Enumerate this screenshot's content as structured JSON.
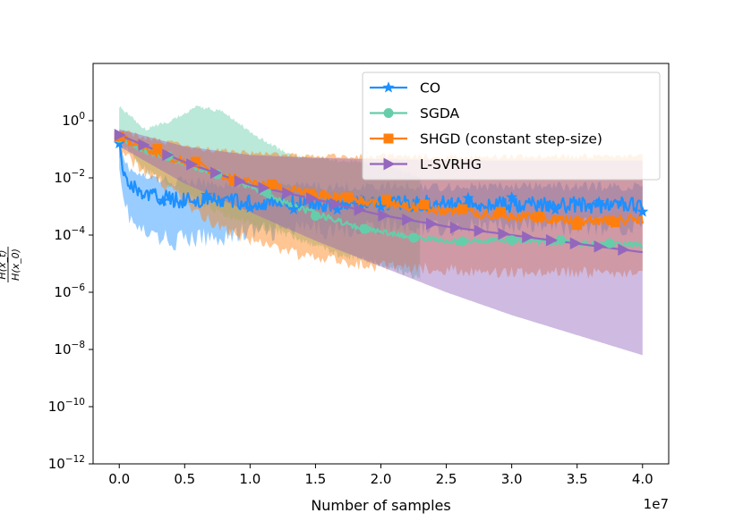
{
  "chart_data": {
    "type": "line",
    "title": "",
    "xlabel": "Number of samples",
    "ylabel_num": "H(x_t)",
    "ylabel_den": "H(x_0)",
    "x_scale_label": "1e7",
    "yscale": "log",
    "xlim": [
      -0.2,
      4.2
    ],
    "ylim_exp": [
      -12,
      2
    ],
    "x_ticks": [
      {
        "value": 0.0,
        "label": "0.0"
      },
      {
        "value": 0.5,
        "label": "0.5"
      },
      {
        "value": 1.0,
        "label": "1.0"
      },
      {
        "value": 1.5,
        "label": "1.5"
      },
      {
        "value": 2.0,
        "label": "2.0"
      },
      {
        "value": 2.5,
        "label": "2.5"
      },
      {
        "value": 3.0,
        "label": "3.0"
      },
      {
        "value": 3.5,
        "label": "3.5"
      },
      {
        "value": 4.0,
        "label": "4.0"
      }
    ],
    "y_ticks": [
      {
        "exp": 0,
        "base": "10",
        "power": "0"
      },
      {
        "exp": -2,
        "base": "10",
        "power": "−2"
      },
      {
        "exp": -4,
        "base": "10",
        "power": "−4"
      },
      {
        "exp": -6,
        "base": "10",
        "power": "−6"
      },
      {
        "exp": -8,
        "base": "10",
        "power": "−8"
      },
      {
        "exp": -10,
        "base": "10",
        "power": "−10"
      },
      {
        "exp": -12,
        "base": "10",
        "power": "−12"
      }
    ],
    "legend_position": "top-right",
    "series": [
      {
        "name": "CO",
        "color": "#1e90ff",
        "marker": "star",
        "noise": 0.28,
        "marker_every": 40,
        "x": [
          0.0,
          0.02,
          0.05,
          0.1,
          0.2,
          0.4,
          0.7,
          1.0,
          1.5,
          2.0,
          2.5,
          3.0,
          3.5,
          4.0
        ],
        "y_exp": [
          -0.8,
          -1.5,
          -2.0,
          -2.3,
          -2.6,
          -2.75,
          -2.8,
          -2.85,
          -2.9,
          -2.9,
          -2.9,
          -2.95,
          -2.95,
          -2.95
        ],
        "band_upper_exp": [
          -0.5,
          -1.0,
          -1.5,
          -1.8,
          -2.0,
          -2.1,
          -2.2,
          -2.25,
          -2.3,
          -2.3,
          -2.3,
          -2.3,
          -2.3,
          -2.3
        ],
        "band_lower_exp": [
          -1.3,
          -2.3,
          -3.0,
          -3.6,
          -4.0,
          -4.2,
          -4.1,
          -3.9,
          -3.8,
          -3.7,
          -3.7,
          -3.7,
          -3.7,
          -3.7
        ]
      },
      {
        "name": "SGDA",
        "color": "#66cdaa",
        "marker": "circle",
        "noise": 0.1,
        "marker_every": 45,
        "x": [
          0.0,
          0.2,
          0.4,
          0.6,
          0.8,
          1.0,
          1.2,
          1.5,
          1.8,
          2.0,
          2.3,
          2.6,
          3.0,
          3.3,
          3.6,
          4.0
        ],
        "y_exp": [
          -0.6,
          -1.05,
          -1.35,
          -1.65,
          -1.95,
          -2.3,
          -2.75,
          -3.25,
          -3.7,
          -3.9,
          -4.1,
          -4.25,
          -4.15,
          -4.25,
          -4.3,
          -4.35
        ],
        "band_upper_exp": [
          0.5,
          -0.3,
          0.0,
          0.5,
          0.3,
          -0.4,
          -1.2,
          -1.4,
          -1.5,
          -2.0
        ],
        "band_lower_exp": [
          -0.7,
          -1.7,
          -2.3,
          -2.8,
          -3.3,
          -3.6,
          -4.0,
          -4.7,
          -5.0,
          -5.5
        ],
        "band_x": [
          0.0,
          0.2,
          0.4,
          0.6,
          0.8,
          1.0,
          1.3,
          1.7,
          2.0,
          2.3
        ]
      },
      {
        "name": "SHGD (constant step-size)",
        "color": "#ff7f0e",
        "marker": "square",
        "noise": 0.17,
        "marker_every": 35,
        "x": [
          0.0,
          0.2,
          0.4,
          0.6,
          0.8,
          1.0,
          1.2,
          1.5,
          1.8,
          2.0,
          2.5,
          3.0,
          3.5,
          4.0
        ],
        "y_exp": [
          -0.55,
          -0.95,
          -1.3,
          -1.6,
          -1.9,
          -2.15,
          -2.35,
          -2.55,
          -2.75,
          -2.9,
          -3.15,
          -3.35,
          -3.5,
          -3.45
        ],
        "band_upper_exp": [
          -0.35,
          -0.6,
          -0.8,
          -0.95,
          -1.05,
          -1.15,
          -1.2,
          -1.25,
          -1.25,
          -1.25,
          -1.25,
          -1.25,
          -1.25,
          -1.25
        ],
        "band_lower_exp": [
          -1.1,
          -1.8,
          -2.5,
          -3.2,
          -3.8,
          -4.2,
          -4.5,
          -4.8,
          -5.0,
          -5.1,
          -5.2,
          -5.3,
          -5.3,
          -5.4
        ]
      },
      {
        "name": "L-SVRHG",
        "color": "#9467bd",
        "marker": "triangle-right",
        "noise": 0.0,
        "marker_every": 22,
        "x": [
          0.0,
          0.5,
          1.0,
          1.5,
          2.0,
          2.5,
          3.0,
          3.5,
          4.0
        ],
        "y_exp": [
          -0.5,
          -1.45,
          -2.25,
          -2.75,
          -3.3,
          -3.7,
          -4.0,
          -4.3,
          -4.6
        ],
        "band_upper_exp": [
          -0.3,
          -0.9,
          -1.2,
          -1.3,
          -1.35,
          -1.38,
          -1.4,
          -1.4,
          -1.4
        ],
        "band_lower_exp": [
          -0.9,
          -2.2,
          -3.2,
          -4.2,
          -5.1,
          -6.0,
          -6.8,
          -7.5,
          -8.2
        ]
      }
    ]
  }
}
